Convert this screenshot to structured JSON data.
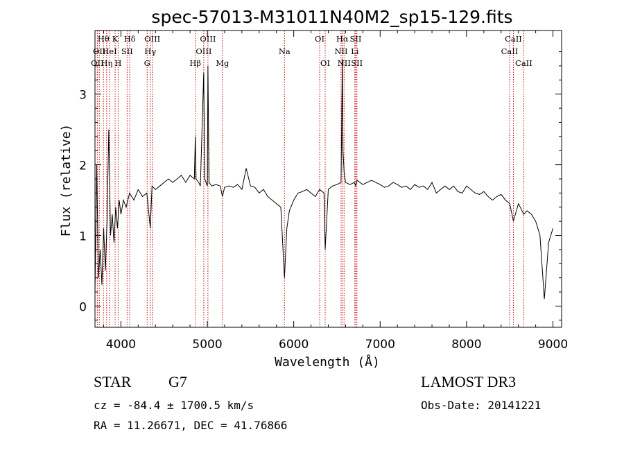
{
  "title": "spec-57013-M31011N40M2_sp15-129.fits",
  "info": {
    "class_label": "STAR",
    "subclass": "G7",
    "survey": "LAMOST DR3",
    "redshift": "cz = -84.4 ± 1700.5 km/s",
    "obs_date": "Obs-Date: 20141221",
    "coords": "RA =  11.26671, DEC =  41.76866"
  },
  "colors": {
    "spectrum": "#000000",
    "line_marker": "#cc0000",
    "axes": "#000000"
  },
  "chart_data": {
    "type": "line",
    "title": "spec-57013-M31011N40M2_sp15-129.fits",
    "xlabel": "Wavelength (Å)",
    "ylabel": "Flux (relative)",
    "xlim": [
      3700,
      9100
    ],
    "ylim": [
      -0.3,
      3.9
    ],
    "xticks": [
      4000,
      5000,
      6000,
      7000,
      8000,
      9000
    ],
    "yticks": [
      0,
      1,
      2,
      3
    ],
    "grid": false,
    "legend": "none",
    "series": [
      {
        "x": [
          3700,
          3720,
          3740,
          3760,
          3780,
          3800,
          3820,
          3840,
          3860,
          3880,
          3900,
          3920,
          3940,
          3960,
          3980,
          4000,
          4030,
          4060,
          4100,
          4150,
          4200,
          4250,
          4300,
          4340,
          4360,
          4400,
          4450,
          4500,
          4550,
          4600,
          4650,
          4700,
          4750,
          4800,
          4850,
          4861,
          4870,
          4900,
          4920,
          4958,
          4970,
          5000,
          5007,
          5020,
          5050,
          5100,
          5150,
          5175,
          5200,
          5250,
          5300,
          5350,
          5400,
          5450,
          5500,
          5550,
          5600,
          5650,
          5700,
          5750,
          5800,
          5850,
          5893,
          5920,
          5950,
          6000,
          6050,
          6100,
          6150,
          6200,
          6250,
          6300,
          6350,
          6364,
          6400,
          6450,
          6500,
          6548,
          6563,
          6570,
          6583,
          6600,
          6650,
          6700,
          6717,
          6731,
          6800,
          6850,
          6900,
          6950,
          7000,
          7050,
          7100,
          7150,
          7200,
          7250,
          7300,
          7350,
          7400,
          7450,
          7500,
          7550,
          7600,
          7650,
          7700,
          7750,
          7800,
          7850,
          7900,
          7950,
          8000,
          8050,
          8100,
          8150,
          8200,
          8250,
          8300,
          8350,
          8400,
          8450,
          8500,
          8542,
          8600,
          8662,
          8700,
          8750,
          8800,
          8850,
          8900,
          8950,
          9000
        ],
        "y": [
          0.2,
          2.0,
          0.4,
          0.8,
          0.3,
          1.1,
          0.5,
          1.2,
          2.5,
          1.0,
          1.3,
          0.9,
          1.4,
          1.1,
          1.5,
          1.3,
          1.5,
          1.4,
          1.6,
          1.5,
          1.65,
          1.55,
          1.6,
          1.1,
          1.7,
          1.65,
          1.7,
          1.75,
          1.8,
          1.75,
          1.8,
          1.85,
          1.75,
          1.85,
          1.8,
          2.4,
          1.8,
          1.75,
          1.7,
          3.3,
          1.8,
          1.7,
          3.4,
          1.75,
          1.7,
          1.72,
          1.7,
          1.55,
          1.68,
          1.7,
          1.68,
          1.72,
          1.65,
          1.95,
          1.7,
          1.68,
          1.6,
          1.65,
          1.55,
          1.5,
          1.45,
          1.4,
          0.4,
          1.1,
          1.35,
          1.5,
          1.6,
          1.62,
          1.65,
          1.6,
          1.55,
          1.65,
          1.6,
          0.8,
          1.65,
          1.7,
          1.72,
          1.75,
          3.5,
          2.2,
          1.9,
          1.75,
          1.72,
          1.75,
          1.7,
          1.78,
          1.72,
          1.75,
          1.78,
          1.75,
          1.72,
          1.68,
          1.7,
          1.75,
          1.72,
          1.68,
          1.7,
          1.65,
          1.72,
          1.68,
          1.7,
          1.65,
          1.75,
          1.6,
          1.65,
          1.7,
          1.65,
          1.7,
          1.62,
          1.6,
          1.7,
          1.65,
          1.6,
          1.58,
          1.62,
          1.55,
          1.5,
          1.55,
          1.58,
          1.5,
          1.45,
          1.2,
          1.45,
          1.3,
          1.35,
          1.3,
          1.2,
          1.0,
          0.1,
          0.9,
          1.1
        ]
      }
    ],
    "line_markers": [
      {
        "x": 3727,
        "label": "OII",
        "row": 2
      },
      {
        "x": 3750,
        "label": "OII",
        "row": 1
      },
      {
        "x": 3798,
        "label": "Hθ",
        "row": 0
      },
      {
        "x": 3835,
        "label": "Hη",
        "row": 2
      },
      {
        "x": 3869,
        "label": "HeI",
        "row": 1
      },
      {
        "x": 3933,
        "label": "K",
        "row": 0
      },
      {
        "x": 3968,
        "label": "H",
        "row": 2
      },
      {
        "x": 4072,
        "label": "SII",
        "row": 1
      },
      {
        "x": 4102,
        "label": "Hδ",
        "row": 0
      },
      {
        "x": 4304,
        "label": "G",
        "row": 2
      },
      {
        "x": 4340,
        "label": "Hγ",
        "row": 1
      },
      {
        "x": 4363,
        "label": "OIII",
        "row": 0
      },
      {
        "x": 4861,
        "label": "Hβ",
        "row": 2
      },
      {
        "x": 4959,
        "label": "OIII",
        "row": 1
      },
      {
        "x": 5007,
        "label": "OIII",
        "row": 0
      },
      {
        "x": 5175,
        "label": "Mg",
        "row": 2
      },
      {
        "x": 5893,
        "label": "Na",
        "row": 1
      },
      {
        "x": 6300,
        "label": "OI",
        "row": 0
      },
      {
        "x": 6364,
        "label": "OI",
        "row": 2
      },
      {
        "x": 6548,
        "label": "NII",
        "row": 1
      },
      {
        "x": 6563,
        "label": "Hα",
        "row": 0
      },
      {
        "x": 6583,
        "label": "NII",
        "row": 2
      },
      {
        "x": 6707,
        "label": "Li",
        "row": 1
      },
      {
        "x": 6717,
        "label": "SII",
        "row": 0
      },
      {
        "x": 6731,
        "label": "SII",
        "row": 2
      },
      {
        "x": 8498,
        "label": "CaII",
        "row": 1
      },
      {
        "x": 8542,
        "label": "CaII",
        "row": 0
      },
      {
        "x": 8662,
        "label": "CaII",
        "row": 2
      }
    ]
  }
}
